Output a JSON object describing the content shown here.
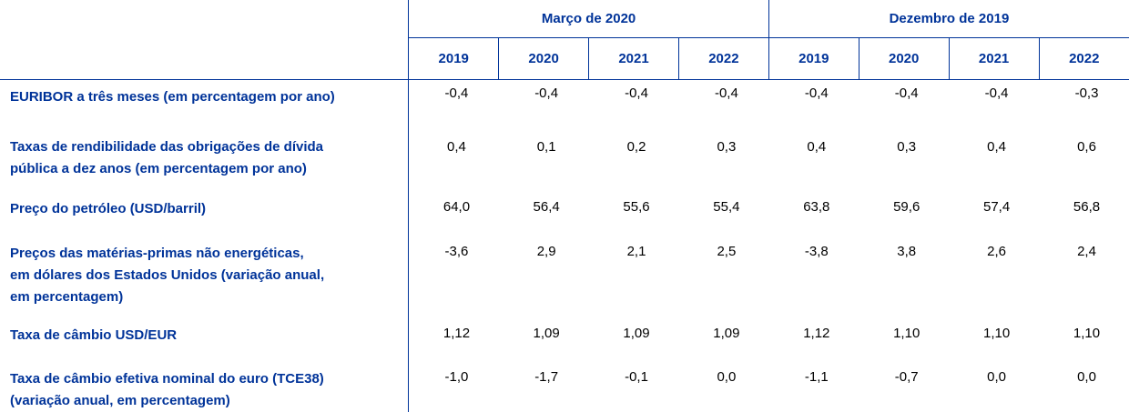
{
  "header": {
    "groups": [
      "Março de 2020",
      "Dezembro de 2019"
    ],
    "years": [
      "2019",
      "2020",
      "2021",
      "2022",
      "2019",
      "2020",
      "2021",
      "2022"
    ]
  },
  "rows": [
    {
      "label_lines": [
        "EURIBOR a três meses (em percentagem por ano)"
      ],
      "values": [
        "-0,4",
        "-0,4",
        "-0,4",
        "-0,4",
        "-0,4",
        "-0,4",
        "-0,4",
        "-0,3"
      ]
    },
    {
      "label_lines": [
        "Taxas de rendibilidade das obrigações de dívida",
        "pública a dez anos (em percentagem por ano)"
      ],
      "values": [
        "0,4",
        "0,1",
        "0,2",
        "0,3",
        "0,4",
        "0,3",
        "0,4",
        "0,6"
      ]
    },
    {
      "label_lines": [
        "Preço do petróleo (USD/barril)"
      ],
      "values": [
        "64,0",
        "56,4",
        "55,6",
        "55,4",
        "63,8",
        "59,6",
        "57,4",
        "56,8"
      ]
    },
    {
      "label_lines": [
        "Preços das matérias-primas não energéticas,",
        "em dólares dos Estados Unidos (variação anual,",
        "em percentagem)"
      ],
      "values": [
        "-3,6",
        "2,9",
        "2,1",
        "2,5",
        "-3,8",
        "3,8",
        "2,6",
        "2,4"
      ]
    },
    {
      "label_lines": [
        "Taxa de câmbio USD/EUR"
      ],
      "values": [
        "1,12",
        "1,09",
        "1,09",
        "1,09",
        "1,12",
        "1,10",
        "1,10",
        "1,10"
      ]
    },
    {
      "label_lines": [
        "Taxa de câmbio efetiva nominal do euro (TCE38)",
        "(variação anual, em percentagem)"
      ],
      "values": [
        "-1,0",
        "-1,7",
        "-0,1",
        "0,0",
        "-1,1",
        "-0,7",
        "0,0",
        "0,0"
      ]
    }
  ]
}
